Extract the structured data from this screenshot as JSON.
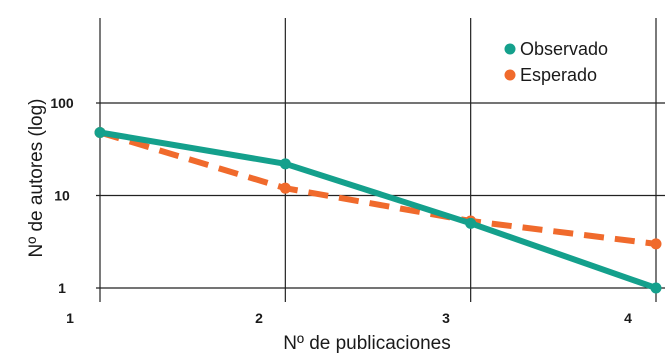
{
  "chart_data": {
    "type": "line",
    "title": "",
    "xlabel": "Nº de publicaciones",
    "ylabel": "Nº de autores (log)",
    "x": [
      1,
      2,
      3,
      4
    ],
    "xticks": [
      "1",
      "2",
      "3",
      "4"
    ],
    "yticks": [
      {
        "value": 1,
        "label": "1"
      },
      {
        "value": 10,
        "label": "10"
      },
      {
        "value": 100,
        "label": "100"
      }
    ],
    "yscale": "log",
    "xlim": [
      1,
      4
    ],
    "ylim": [
      1,
      100
    ],
    "grid": true,
    "legend_position": "top-right",
    "series": [
      {
        "name": "Observado",
        "values": [
          48,
          22,
          5,
          1
        ],
        "color": "#14a08c",
        "style": "solid"
      },
      {
        "name": "Esperado",
        "values": [
          48,
          12,
          5.3,
          3
        ],
        "color": "#f06a2c",
        "style": "dashed"
      }
    ]
  }
}
